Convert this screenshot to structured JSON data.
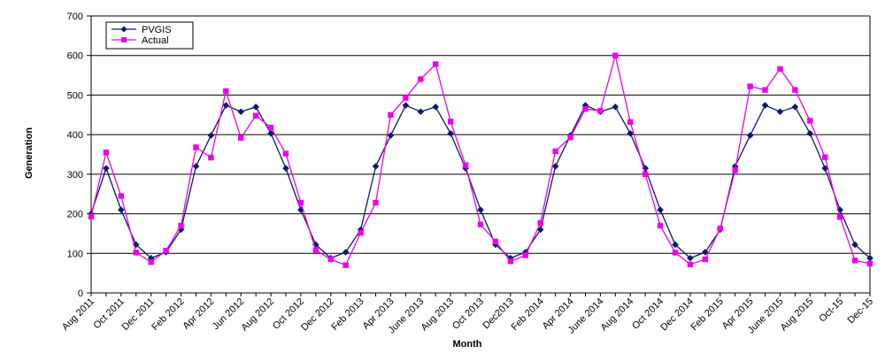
{
  "chart_data": {
    "type": "line",
    "xlabel": "Month",
    "ylabel": "Generation",
    "ylim": [
      0,
      700
    ],
    "yticks": [
      0,
      100,
      200,
      300,
      400,
      500,
      600,
      700
    ],
    "grid": "horizontal",
    "legend_position": "top-left",
    "x_tick_labels": [
      "Aug 2011",
      "Oct 2011",
      "Dec 2011",
      "Feb 2012",
      "Apr 2012",
      "Jun 2012",
      "Aug 2012",
      "Oct  2012",
      "Dec  2012",
      "Feb 2013",
      "Apr 2013",
      "June 2013",
      "Aug 2013",
      "Oct 2013",
      "Dec2013",
      "Feb 2014",
      "Apr 2014",
      "June 2014",
      "Aug 2014",
      "Oct 2014",
      "Dec 2014",
      "Feb 2015",
      "Apr 2015",
      "June 2015",
      "Aug 2015",
      "Oct-15",
      "Dec-15"
    ],
    "series": [
      {
        "name": "PVGIS",
        "color": "#0a1a6b",
        "marker": "diamond",
        "values": [
          200,
          315,
          210,
          122,
          88,
          103,
          160,
          320,
          398,
          474,
          458,
          470,
          403,
          315,
          210,
          122,
          88,
          103,
          160,
          320,
          398,
          474,
          458,
          470,
          403,
          315,
          210,
          122,
          88,
          103,
          160,
          320,
          398,
          474,
          458,
          470,
          403,
          315,
          210,
          122,
          88,
          103,
          160,
          320,
          398,
          474,
          458,
          470,
          403,
          315,
          210,
          122,
          88
        ]
      },
      {
        "name": "Actual",
        "color": "#ee00ee",
        "marker": "square",
        "values": [
          193,
          355,
          245,
          102,
          78,
          107,
          170,
          368,
          342,
          510,
          392,
          448,
          418,
          352,
          228,
          108,
          85,
          70,
          152,
          228,
          450,
          493,
          540,
          578,
          433,
          323,
          173,
          130,
          80,
          95,
          177,
          358,
          393,
          465,
          460,
          600,
          432,
          300,
          170,
          102,
          72,
          85,
          163,
          310,
          522,
          513,
          566,
          513,
          435,
          343,
          192,
          82,
          74
        ]
      }
    ]
  }
}
